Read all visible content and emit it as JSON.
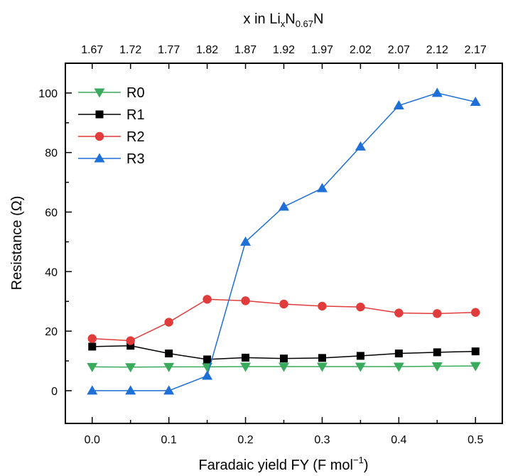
{
  "chart_data": {
    "type": "line",
    "x": [
      0.0,
      0.05,
      0.1,
      0.15,
      0.2,
      0.25,
      0.3,
      0.35,
      0.4,
      0.45,
      0.5
    ],
    "xlabel": {
      "main": "Faradaic yield FY (F mol",
      "sup": "−1",
      "tail": ")"
    },
    "ylabel": "Resistance (Ω)",
    "xlim": [
      -0.035,
      0.535
    ],
    "ylim": [
      -11,
      110
    ],
    "x_ticks": [
      0.0,
      0.1,
      0.2,
      0.3,
      0.4,
      0.5
    ],
    "x_tick_labels": [
      "0.0",
      "0.1",
      "0.2",
      "0.3",
      "0.4",
      "0.5"
    ],
    "y_ticks": [
      0,
      20,
      40,
      60,
      80,
      100
    ],
    "y_tick_labels": [
      "0",
      "20",
      "40",
      "60",
      "80",
      "100"
    ],
    "top_axis": {
      "label_parts": [
        {
          "t": "x in Li",
          "s": "n"
        },
        {
          "t": "x",
          "s": "sub"
        },
        {
          "t": "N",
          "s": "n"
        },
        {
          "t": "0.67",
          "s": "sub"
        },
        {
          "t": "N",
          "s": "n"
        }
      ],
      "tick_labels": [
        "1.67",
        "1.72",
        "1.77",
        "1.82",
        "1.87",
        "1.92",
        "1.97",
        "2.02",
        "2.07",
        "2.12",
        "2.17"
      ]
    },
    "legend_position": "top-left",
    "grid": false,
    "series": [
      {
        "name": "R0",
        "color": "#3aaa5c",
        "marker": "triangle-down",
        "values": [
          8.0,
          7.9,
          8.0,
          8.0,
          8.1,
          8.1,
          8.1,
          8.1,
          8.1,
          8.2,
          8.3
        ]
      },
      {
        "name": "R1",
        "color": "#000000",
        "marker": "square",
        "values": [
          14.8,
          15.1,
          12.5,
          10.5,
          11.1,
          10.8,
          11.0,
          11.7,
          12.5,
          12.9,
          13.2
        ]
      },
      {
        "name": "R2",
        "color": "#e03c3c",
        "marker": "circle",
        "values": [
          17.5,
          16.8,
          23.0,
          30.7,
          30.2,
          29.1,
          28.4,
          28.1,
          26.1,
          25.9,
          26.3
        ]
      },
      {
        "name": "R3",
        "color": "#1e6fd6",
        "marker": "triangle-up",
        "values": [
          0.0,
          0.0,
          0.0,
          5.0,
          50.0,
          61.8,
          68.0,
          82.0,
          95.8,
          100.0,
          97.0
        ]
      }
    ]
  }
}
